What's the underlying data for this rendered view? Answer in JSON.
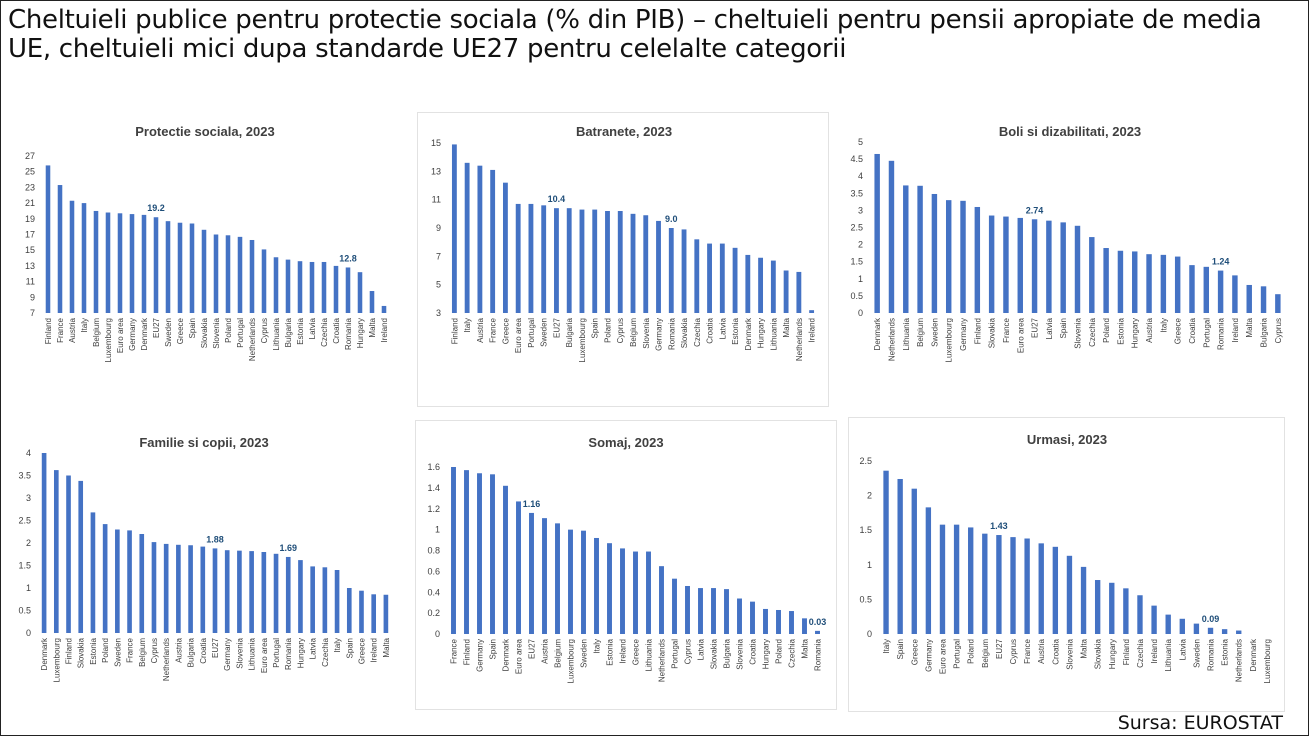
{
  "page": {
    "title": "Cheltuieli publice pentru protectie sociala (% din PIB) – cheltuieli pentru pensii apropiate de media UE, cheltuieli mici dupa standarde UE27 pentru celelalte categorii",
    "source": "Sursa: EUROSTAT"
  },
  "colors": {
    "bar": "#4472C4",
    "label": "#1F4E79",
    "axis_text": "#404040",
    "title_text": "#404040"
  },
  "chart_data": [
    {
      "id": "protectie",
      "type": "bar",
      "title": "Protectie sociala, 2023",
      "ylim": [
        7,
        27
      ],
      "yticks": [
        7,
        9,
        11,
        13,
        15,
        17,
        19,
        21,
        23,
        25,
        27
      ],
      "categories": [
        "Finland",
        "France",
        "Austria",
        "Italy",
        "Belgium",
        "Luxembourg",
        "Euro area",
        "Germany",
        "Denmark",
        "EU27",
        "Sweden",
        "Greece",
        "Spain",
        "Slovakia",
        "Slovenia",
        "Poland",
        "Portugal",
        "Netherlands",
        "Cyprus",
        "Lithuania",
        "Bulgaria",
        "Estonia",
        "Latvia",
        "Czechia",
        "Croatia",
        "Romania",
        "Hungary",
        "Malta",
        "Ireland"
      ],
      "values": [
        25.8,
        23.3,
        21.3,
        21.0,
        20.0,
        19.8,
        19.7,
        19.6,
        19.5,
        19.2,
        18.7,
        18.5,
        18.4,
        17.6,
        17.0,
        16.9,
        16.7,
        16.3,
        15.1,
        14.1,
        13.8,
        13.6,
        13.5,
        13.5,
        13.0,
        12.8,
        12.2,
        9.8,
        7.9
      ],
      "labels": [
        {
          "category": "EU27",
          "text": "19.2"
        },
        {
          "category": "Romania",
          "text": "12.8"
        }
      ]
    },
    {
      "id": "batranete",
      "type": "bar",
      "title": "Batranete, 2023",
      "ylim": [
        3,
        15
      ],
      "yticks": [
        3,
        5,
        7,
        9,
        11,
        13,
        15
      ],
      "categories": [
        "Finland",
        "Italy",
        "Austria",
        "France",
        "Greece",
        "Euro area",
        "Portugal",
        "Sweden",
        "EU27",
        "Bulgaria",
        "Luxembourg",
        "Spain",
        "Poland",
        "Cyprus",
        "Belgium",
        "Slovenia",
        "Germany",
        "Romania",
        "Slovakia",
        "Czechia",
        "Croatia",
        "Latvia",
        "Estonia",
        "Denmark",
        "Hungary",
        "Lithuania",
        "Malta",
        "Netherlands",
        "Ireland"
      ],
      "values": [
        14.9,
        13.6,
        13.4,
        13.1,
        12.2,
        10.7,
        10.7,
        10.6,
        10.4,
        10.4,
        10.3,
        10.3,
        10.2,
        10.2,
        10.0,
        9.9,
        9.5,
        9.0,
        8.9,
        8.2,
        7.9,
        7.9,
        7.6,
        7.1,
        6.9,
        6.7,
        6.0,
        5.9,
        3.2
      ],
      "labels": [
        {
          "category": "EU27",
          "text": "10.4"
        },
        {
          "category": "Romania",
          "text": "9.0"
        }
      ]
    },
    {
      "id": "boli",
      "type": "bar",
      "title": "Boli si dizabilitati, 2023",
      "ylim": [
        0,
        5
      ],
      "yticks": [
        0,
        0.5,
        1,
        1.5,
        2,
        2.5,
        3,
        3.5,
        4,
        4.5,
        5
      ],
      "categories": [
        "Denmark",
        "Netherlands",
        "Lithuania",
        "Belgium",
        "Sweden",
        "Luxembourg",
        "Germany",
        "Finland",
        "Slovakia",
        "France",
        "Euro area",
        "EU27",
        "Latvia",
        "Spain",
        "Slovenia",
        "Czechia",
        "Poland",
        "Estonia",
        "Hungary",
        "Austria",
        "Italy",
        "Greece",
        "Croatia",
        "Portugal",
        "Romania",
        "Ireland",
        "Malta",
        "Bulgaria",
        "Cyprus"
      ],
      "values": [
        4.65,
        4.45,
        3.73,
        3.72,
        3.48,
        3.3,
        3.28,
        3.1,
        2.85,
        2.82,
        2.78,
        2.74,
        2.7,
        2.65,
        2.55,
        2.22,
        1.9,
        1.82,
        1.8,
        1.72,
        1.7,
        1.65,
        1.4,
        1.35,
        1.24,
        1.1,
        0.82,
        0.78,
        0.55
      ],
      "labels": [
        {
          "category": "EU27",
          "text": "2.74"
        },
        {
          "category": "Romania",
          "text": "1.24"
        }
      ]
    },
    {
      "id": "familie",
      "type": "bar",
      "title": "Familie si copii, 2023",
      "ylim": [
        0,
        4
      ],
      "yticks": [
        0,
        0.5,
        1,
        1.5,
        2,
        2.5,
        3,
        3.5,
        4
      ],
      "categories": [
        "Denmark",
        "Luxembourg",
        "Finland",
        "Slovakia",
        "Estonia",
        "Poland",
        "Sweden",
        "France",
        "Belgium",
        "Cyprus",
        "Netherlands",
        "Austria",
        "Bulgaria",
        "Croatia",
        "EU27",
        "Germany",
        "Slovenia",
        "Lithuania",
        "Euro area",
        "Portugal",
        "Romania",
        "Hungary",
        "Latvia",
        "Czechia",
        "Italy",
        "Spain",
        "Greece",
        "Ireland",
        "Malta"
      ],
      "values": [
        4.0,
        3.62,
        3.5,
        3.38,
        2.68,
        2.42,
        2.3,
        2.28,
        2.2,
        2.02,
        1.98,
        1.96,
        1.95,
        1.92,
        1.88,
        1.84,
        1.83,
        1.82,
        1.8,
        1.76,
        1.69,
        1.62,
        1.48,
        1.46,
        1.4,
        1.0,
        0.94,
        0.86,
        0.85
      ],
      "labels": [
        {
          "category": "EU27",
          "text": "1.88"
        },
        {
          "category": "Romania",
          "text": "1.69"
        }
      ]
    },
    {
      "id": "somaj",
      "type": "bar",
      "title": "Somaj, 2023",
      "ylim": [
        0,
        1.6
      ],
      "yticks": [
        0,
        0.2,
        0.4,
        0.6,
        0.8,
        1,
        1.2,
        1.4,
        1.6
      ],
      "categories": [
        "France",
        "Finland",
        "Germany",
        "Spain",
        "Denmark",
        "Euro area",
        "EU27",
        "Austria",
        "Belgium",
        "Luxembourg",
        "Sweden",
        "Italy",
        "Estonia",
        "Ireland",
        "Greece",
        "Lithuania",
        "Netherlands",
        "Portugal",
        "Cyprus",
        "Latvia",
        "Slovakia",
        "Bulgaria",
        "Slovenia",
        "Croatia",
        "Hungary",
        "Poland",
        "Czechia",
        "Malta",
        "Romania"
      ],
      "values": [
        1.64,
        1.57,
        1.54,
        1.53,
        1.42,
        1.27,
        1.16,
        1.11,
        1.06,
        1.0,
        0.99,
        0.92,
        0.87,
        0.82,
        0.79,
        0.79,
        0.65,
        0.53,
        0.46,
        0.44,
        0.44,
        0.43,
        0.34,
        0.31,
        0.24,
        0.23,
        0.22,
        0.15,
        0.03
      ],
      "labels": [
        {
          "category": "EU27",
          "text": "1.16"
        },
        {
          "category": "Romania",
          "text": "0.03"
        }
      ]
    },
    {
      "id": "urmasi",
      "type": "bar",
      "title": "Urmasi, 2023",
      "ylim": [
        0,
        2.5
      ],
      "yticks": [
        0,
        0.5,
        1,
        1.5,
        2,
        2.5
      ],
      "categories": [
        "Italy",
        "Spain",
        "Greece",
        "Germany",
        "Euro area",
        "Portugal",
        "Poland",
        "Belgium",
        "EU27",
        "Cyprus",
        "France",
        "Austria",
        "Croatia",
        "Slovenia",
        "Malta",
        "Slovakia",
        "Hungary",
        "Finland",
        "Czechia",
        "Ireland",
        "Lithuania",
        "Latvia",
        "Sweden",
        "Romania",
        "Estonia",
        "Netherlands",
        "Denmark",
        "Luxembourg"
      ],
      "values": [
        2.36,
        2.24,
        2.1,
        1.83,
        1.58,
        1.58,
        1.54,
        1.45,
        1.43,
        1.4,
        1.38,
        1.31,
        1.26,
        1.13,
        0.97,
        0.78,
        0.74,
        0.66,
        0.56,
        0.41,
        0.28,
        0.22,
        0.15,
        0.09,
        0.07,
        0.05,
        0,
        0
      ],
      "labels": [
        {
          "category": "EU27",
          "text": "1.43"
        },
        {
          "category": "Romania",
          "text": "0.09"
        }
      ]
    }
  ]
}
